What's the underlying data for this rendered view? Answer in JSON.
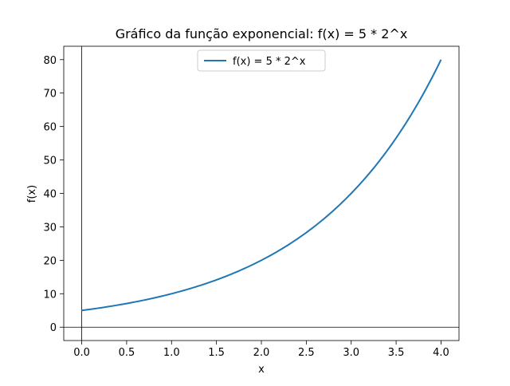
{
  "chart_data": {
    "type": "line",
    "title": "Gráfico da função exponencial: f(x) = 5 * 2^x",
    "xlabel": "x",
    "ylabel": "f(x)",
    "xlim": [
      -0.2,
      4.2
    ],
    "ylim": [
      -4,
      84
    ],
    "xticks": [
      0.0,
      0.5,
      1.0,
      1.5,
      2.0,
      2.5,
      3.0,
      3.5,
      4.0
    ],
    "xtick_labels": [
      "0.0",
      "0.5",
      "1.0",
      "1.5",
      "2.0",
      "2.5",
      "3.0",
      "3.5",
      "4.0"
    ],
    "yticks": [
      0,
      10,
      20,
      30,
      40,
      50,
      60,
      70,
      80
    ],
    "ytick_labels": [
      "0",
      "10",
      "20",
      "30",
      "40",
      "50",
      "60",
      "70",
      "80"
    ],
    "grid": false,
    "reference_lines": {
      "x": 0,
      "y": 0
    },
    "legend": {
      "placement": "upper-center"
    },
    "series": [
      {
        "name": "f(x) = 5 * 2^x",
        "color": "#1f77b4",
        "x": [
          0.0,
          0.25,
          0.5,
          0.75,
          1.0,
          1.25,
          1.5,
          1.75,
          2.0,
          2.25,
          2.5,
          2.75,
          3.0,
          3.25,
          3.5,
          3.75,
          4.0
        ],
        "y": [
          5.0,
          5.95,
          7.07,
          8.41,
          10.0,
          11.89,
          14.14,
          16.82,
          20.0,
          23.78,
          28.28,
          33.64,
          40.0,
          47.57,
          56.57,
          67.27,
          80.0
        ]
      }
    ]
  }
}
